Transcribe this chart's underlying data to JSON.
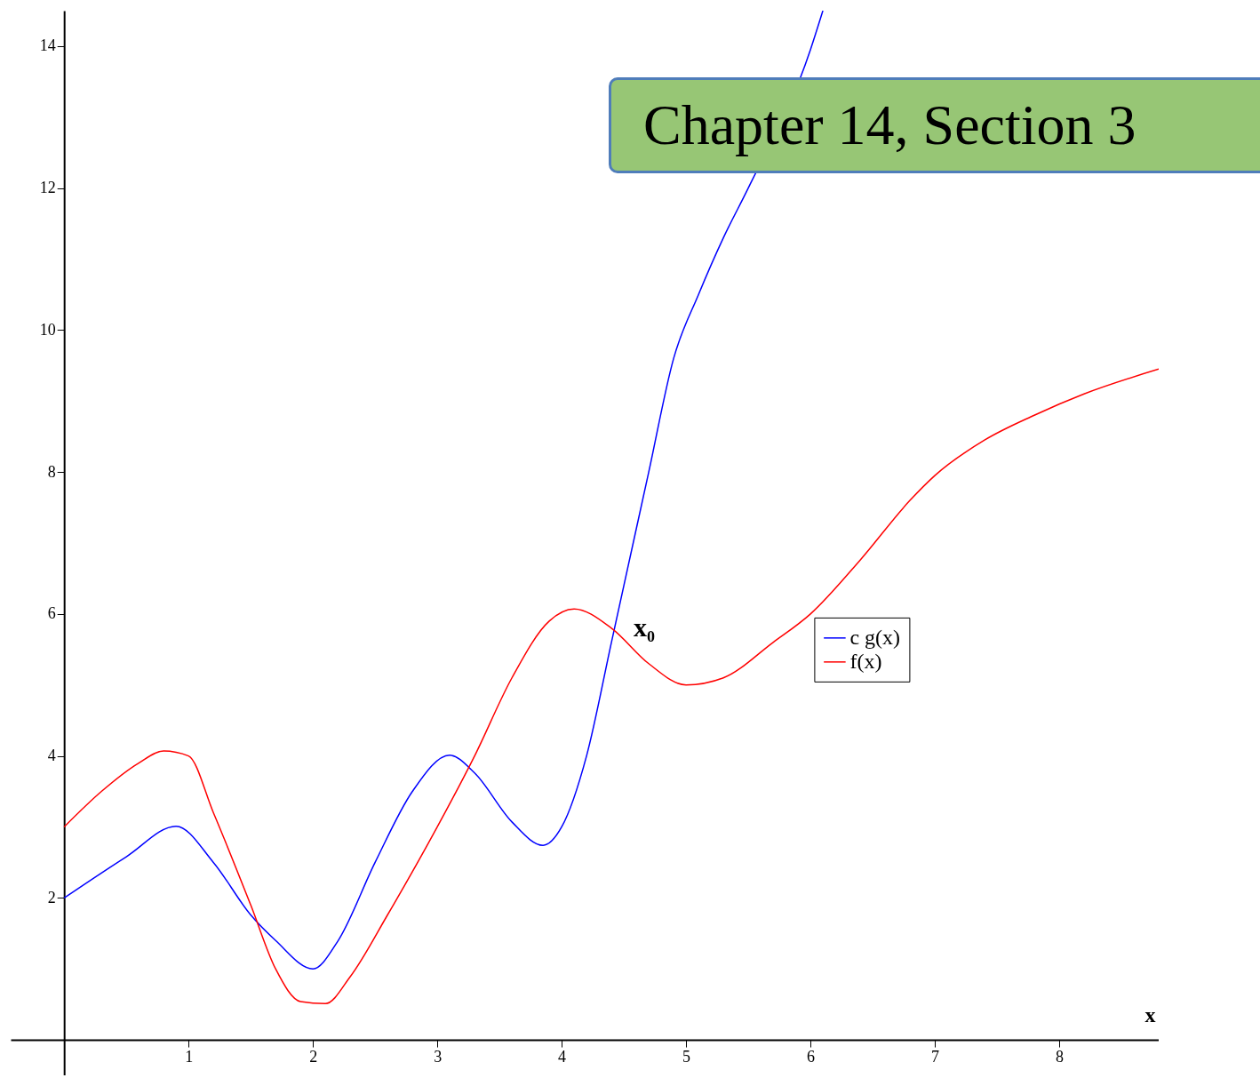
{
  "chart_data": {
    "type": "line",
    "title": "Chapter 14, Section 3",
    "xlabel": "x",
    "xlim": [
      -0.43,
      8.8
    ],
    "ylim": [
      -0.5,
      14.5
    ],
    "xticks": [
      1,
      2,
      3,
      4,
      5,
      6,
      7,
      8
    ],
    "yticks": [
      2,
      4,
      6,
      8,
      10,
      12,
      14
    ],
    "grid": false,
    "legend": "right",
    "marker": "none",
    "line_style": "solid",
    "annotations": [
      {
        "text": "x₀",
        "x": 4.45,
        "y": 5.8
      }
    ],
    "series": [
      {
        "name": "c g(x)",
        "color": "#0000ff",
        "x": [
          0,
          0.5,
          0.9,
          1.2,
          1.5,
          1.7,
          2,
          2.2,
          2.5,
          2.8,
          3.1,
          3.3,
          3.6,
          3.85,
          4,
          4.2,
          4.4,
          4.5,
          4.7,
          4.9,
          5.1,
          5.3,
          5.5,
          6.0,
          6.1
        ],
        "values": [
          2,
          2.58,
          3.01,
          2.5,
          1.76,
          1.4,
          1,
          1.39,
          2.5,
          3.5,
          4.01,
          3.76,
          3.07,
          2.74,
          3,
          4,
          5.6,
          6.4,
          8,
          9.6,
          10.5,
          11.3,
          12,
          13.95,
          14.5
        ]
      },
      {
        "name": "f(x)",
        "color": "#ff0000",
        "x": [
          0,
          0.3,
          0.6,
          0.8,
          1,
          1.2,
          1.5,
          1.7,
          1.9,
          2.1,
          2.3,
          2.6,
          3,
          3.3,
          3.6,
          3.9,
          4.1,
          4.4,
          4.7,
          5,
          5.3,
          5.7,
          6,
          6.4,
          6.8,
          7,
          7.4,
          7.8,
          8.2,
          8.8
        ],
        "values": [
          3,
          3.5,
          3.9,
          4.07,
          4,
          3.2,
          1.9,
          1,
          0.54,
          0.51,
          0.89,
          1.76,
          3,
          4,
          5.1,
          5.9,
          6.07,
          5.8,
          5.3,
          5,
          5.1,
          5.6,
          6,
          6.76,
          7.6,
          7.95,
          8.45,
          8.8,
          9.1,
          9.45
        ]
      }
    ]
  }
}
